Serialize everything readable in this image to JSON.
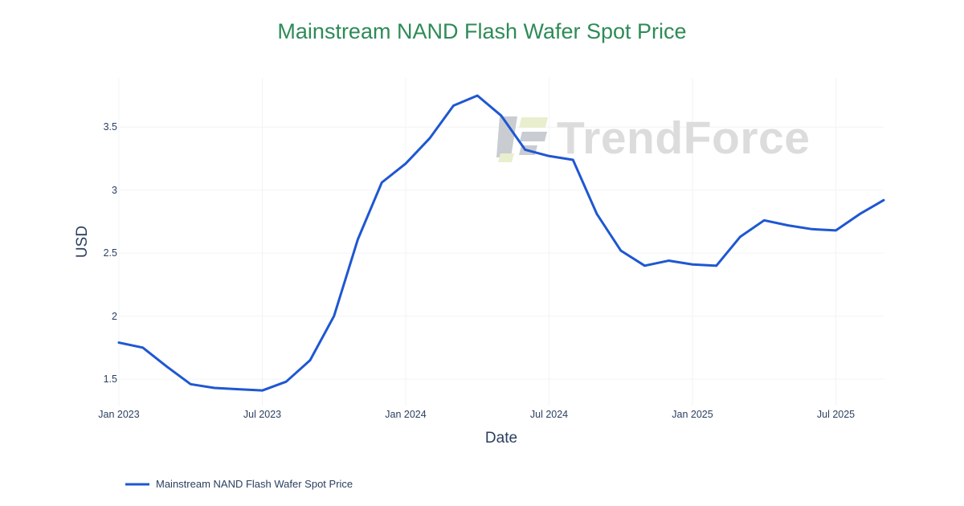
{
  "title": "Mainstream NAND Flash Wafer Spot Price",
  "watermark": {
    "brand": "TrendForce"
  },
  "colors": {
    "line": "#1e57d2",
    "title": "#2e8b57",
    "axis_text": "#2a3f5f",
    "grid": "#f2f3f5",
    "watermark_text": "#dcdcdc",
    "watermark_icon_gray": "#c9ccd1",
    "watermark_icon_green": "#e9efce"
  },
  "chart_data": {
    "type": "line",
    "title": "Mainstream NAND Flash Wafer Spot Price",
    "xlabel": "Date",
    "ylabel": "USD",
    "grid": true,
    "legend_position": "bottom-left",
    "x": [
      "Jan 2023",
      "Feb 2023",
      "Mar 2023",
      "Apr 2023",
      "May 2023",
      "Jun 2023",
      "Jul 2023",
      "Aug 2023",
      "Sep 2023",
      "Oct 2023",
      "Nov 2023",
      "Dec 2023",
      "Jan 2024",
      "Feb 2024",
      "Mar 2024",
      "Apr 2024",
      "May 2024",
      "Jun 2024",
      "Jul 2024",
      "Aug 2024",
      "Sep 2024",
      "Oct 2024",
      "Nov 2024",
      "Dec 2024",
      "Jan 2025",
      "Feb 2025",
      "Mar 2025",
      "Apr 2025",
      "May 2025",
      "Jun 2025",
      "Jul 2025",
      "Aug 2025",
      "Sep 2025"
    ],
    "series": [
      {
        "name": "Mainstream NAND Flash Wafer Spot Price",
        "color": "#1e57d2",
        "values": [
          1.79,
          1.75,
          1.6,
          1.46,
          1.43,
          1.42,
          1.41,
          1.48,
          1.65,
          2.0,
          2.61,
          3.06,
          3.21,
          3.41,
          3.67,
          3.75,
          3.59,
          3.32,
          3.27,
          3.24,
          2.81,
          2.52,
          2.4,
          2.44,
          2.41,
          2.4,
          2.63,
          2.76,
          2.72,
          2.69,
          2.68,
          2.81,
          2.92
        ]
      }
    ],
    "x_tick_indices": [
      0,
      6,
      12,
      18,
      24,
      30
    ],
    "x_tick_labels": [
      "Jan 2023",
      "Jul 2023",
      "Jan 2024",
      "Jul 2024",
      "Jan 2025",
      "Jul 2025"
    ],
    "y_tick_values": [
      1.5,
      2,
      2.5,
      3,
      3.5
    ],
    "y_tick_labels": [
      "1.5",
      "2",
      "2.5",
      "3",
      "3.5"
    ],
    "ylim": [
      1.29,
      3.89
    ]
  }
}
